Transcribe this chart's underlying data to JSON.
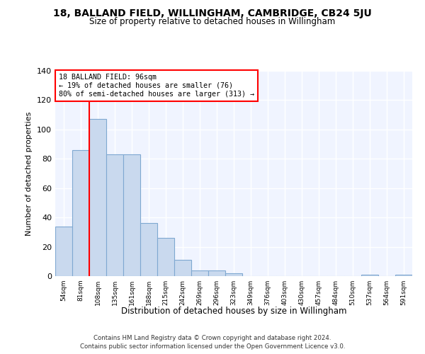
{
  "title": "18, BALLAND FIELD, WILLINGHAM, CAMBRIDGE, CB24 5JU",
  "subtitle": "Size of property relative to detached houses in Willingham",
  "xlabel": "Distribution of detached houses by size in Willingham",
  "ylabel": "Number of detached properties",
  "bar_color": "#c9d9ee",
  "bar_edge_color": "#7fa8d1",
  "background_color": "#f0f4ff",
  "grid_color": "#ffffff",
  "categories": [
    "54sqm",
    "81sqm",
    "108sqm",
    "135sqm",
    "161sqm",
    "188sqm",
    "215sqm",
    "242sqm",
    "269sqm",
    "296sqm",
    "323sqm",
    "349sqm",
    "376sqm",
    "403sqm",
    "430sqm",
    "457sqm",
    "484sqm",
    "510sqm",
    "537sqm",
    "564sqm",
    "591sqm"
  ],
  "values": [
    34,
    86,
    107,
    83,
    83,
    36,
    26,
    11,
    4,
    4,
    2,
    0,
    0,
    0,
    0,
    0,
    0,
    0,
    1,
    0,
    1
  ],
  "ylim": [
    0,
    140
  ],
  "yticks": [
    0,
    20,
    40,
    60,
    80,
    100,
    120,
    140
  ],
  "red_line_x": 1.5,
  "property_label": "18 BALLAND FIELD: 96sqm",
  "annotation_line1": "← 19% of detached houses are smaller (76)",
  "annotation_line2": "80% of semi-detached houses are larger (313) →",
  "footnote1": "Contains HM Land Registry data © Crown copyright and database right 2024.",
  "footnote2": "Contains public sector information licensed under the Open Government Licence v3.0."
}
